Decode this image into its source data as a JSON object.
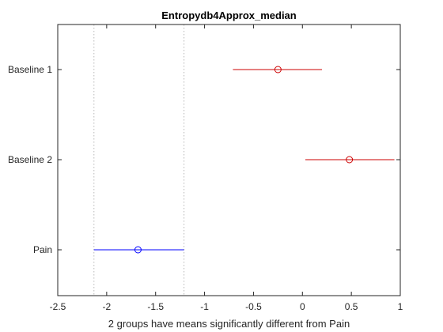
{
  "chart_data": {
    "type": "scatter",
    "title": "Entropydb4Approx_median",
    "xlabel": "2 groups have means significantly different from Pain",
    "ylabel": "",
    "xlim": [
      -2.5,
      1
    ],
    "x_ticks": [
      "-2.5",
      "-2",
      "-1.5",
      "-1",
      "-0.5",
      "0",
      "0.5",
      "1"
    ],
    "grid": false,
    "comparison_interval_lines": [
      -2.13,
      -1.21
    ],
    "groups": [
      {
        "name": "Baseline 1",
        "mean": -0.25,
        "lower": -0.71,
        "upper": 0.2,
        "color": "#cc0000"
      },
      {
        "name": "Baseline 2",
        "mean": 0.48,
        "lower": 0.03,
        "upper": 0.94,
        "color": "#cc0000"
      },
      {
        "name": "Pain",
        "mean": -1.68,
        "lower": -2.13,
        "upper": -1.21,
        "color": "#0000ff"
      }
    ]
  }
}
